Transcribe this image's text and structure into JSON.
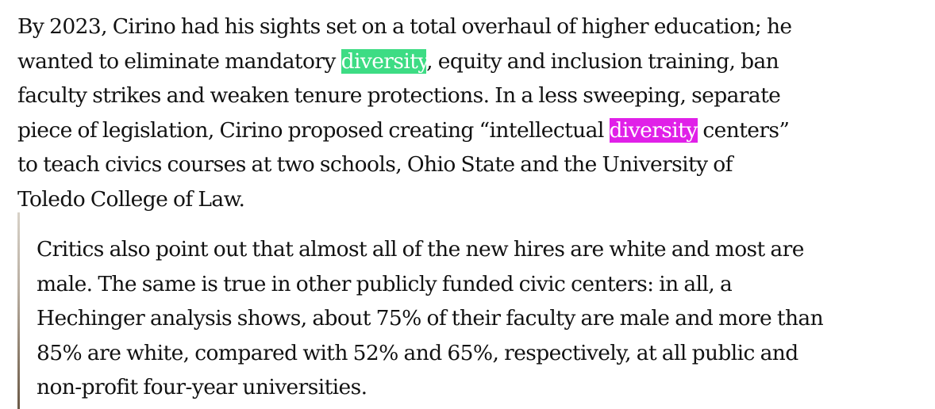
{
  "paragraph1": {
    "line1": "By 2023, Cirino had his sights set on a total overhaul of higher education; he",
    "line2_pre": "wanted to eliminate mandatory ",
    "line2_highlight": "diversity",
    "line2_post": ", equity and inclusion training, ban",
    "line3": "faculty strikes and weaken tenure protections. In a less sweeping, separate",
    "line4_pre": "piece of legislation, Cirino proposed creating “intellectual ",
    "line4_highlight": "diversity",
    "line4_post": " centers”",
    "line5": "to teach civics courses at two schools, Ohio State and the University of",
    "line6": "Toledo College of Law."
  },
  "paragraph2": {
    "line1": "Critics also point out that almost all of the new hires are white and most are",
    "line2": "male. The same is true in other publicly funded civic centers: in all, a",
    "line3": "Hechinger analysis shows, about 75% of their faculty are male and more than",
    "line4": "85% are white, compared with 52% and 65%, respectively, at all public and",
    "line5": "non-profit four-year universities."
  },
  "colors": {
    "highlight_green": "#3ddc84",
    "highlight_magenta": "#e020e8",
    "text": "#121212"
  }
}
